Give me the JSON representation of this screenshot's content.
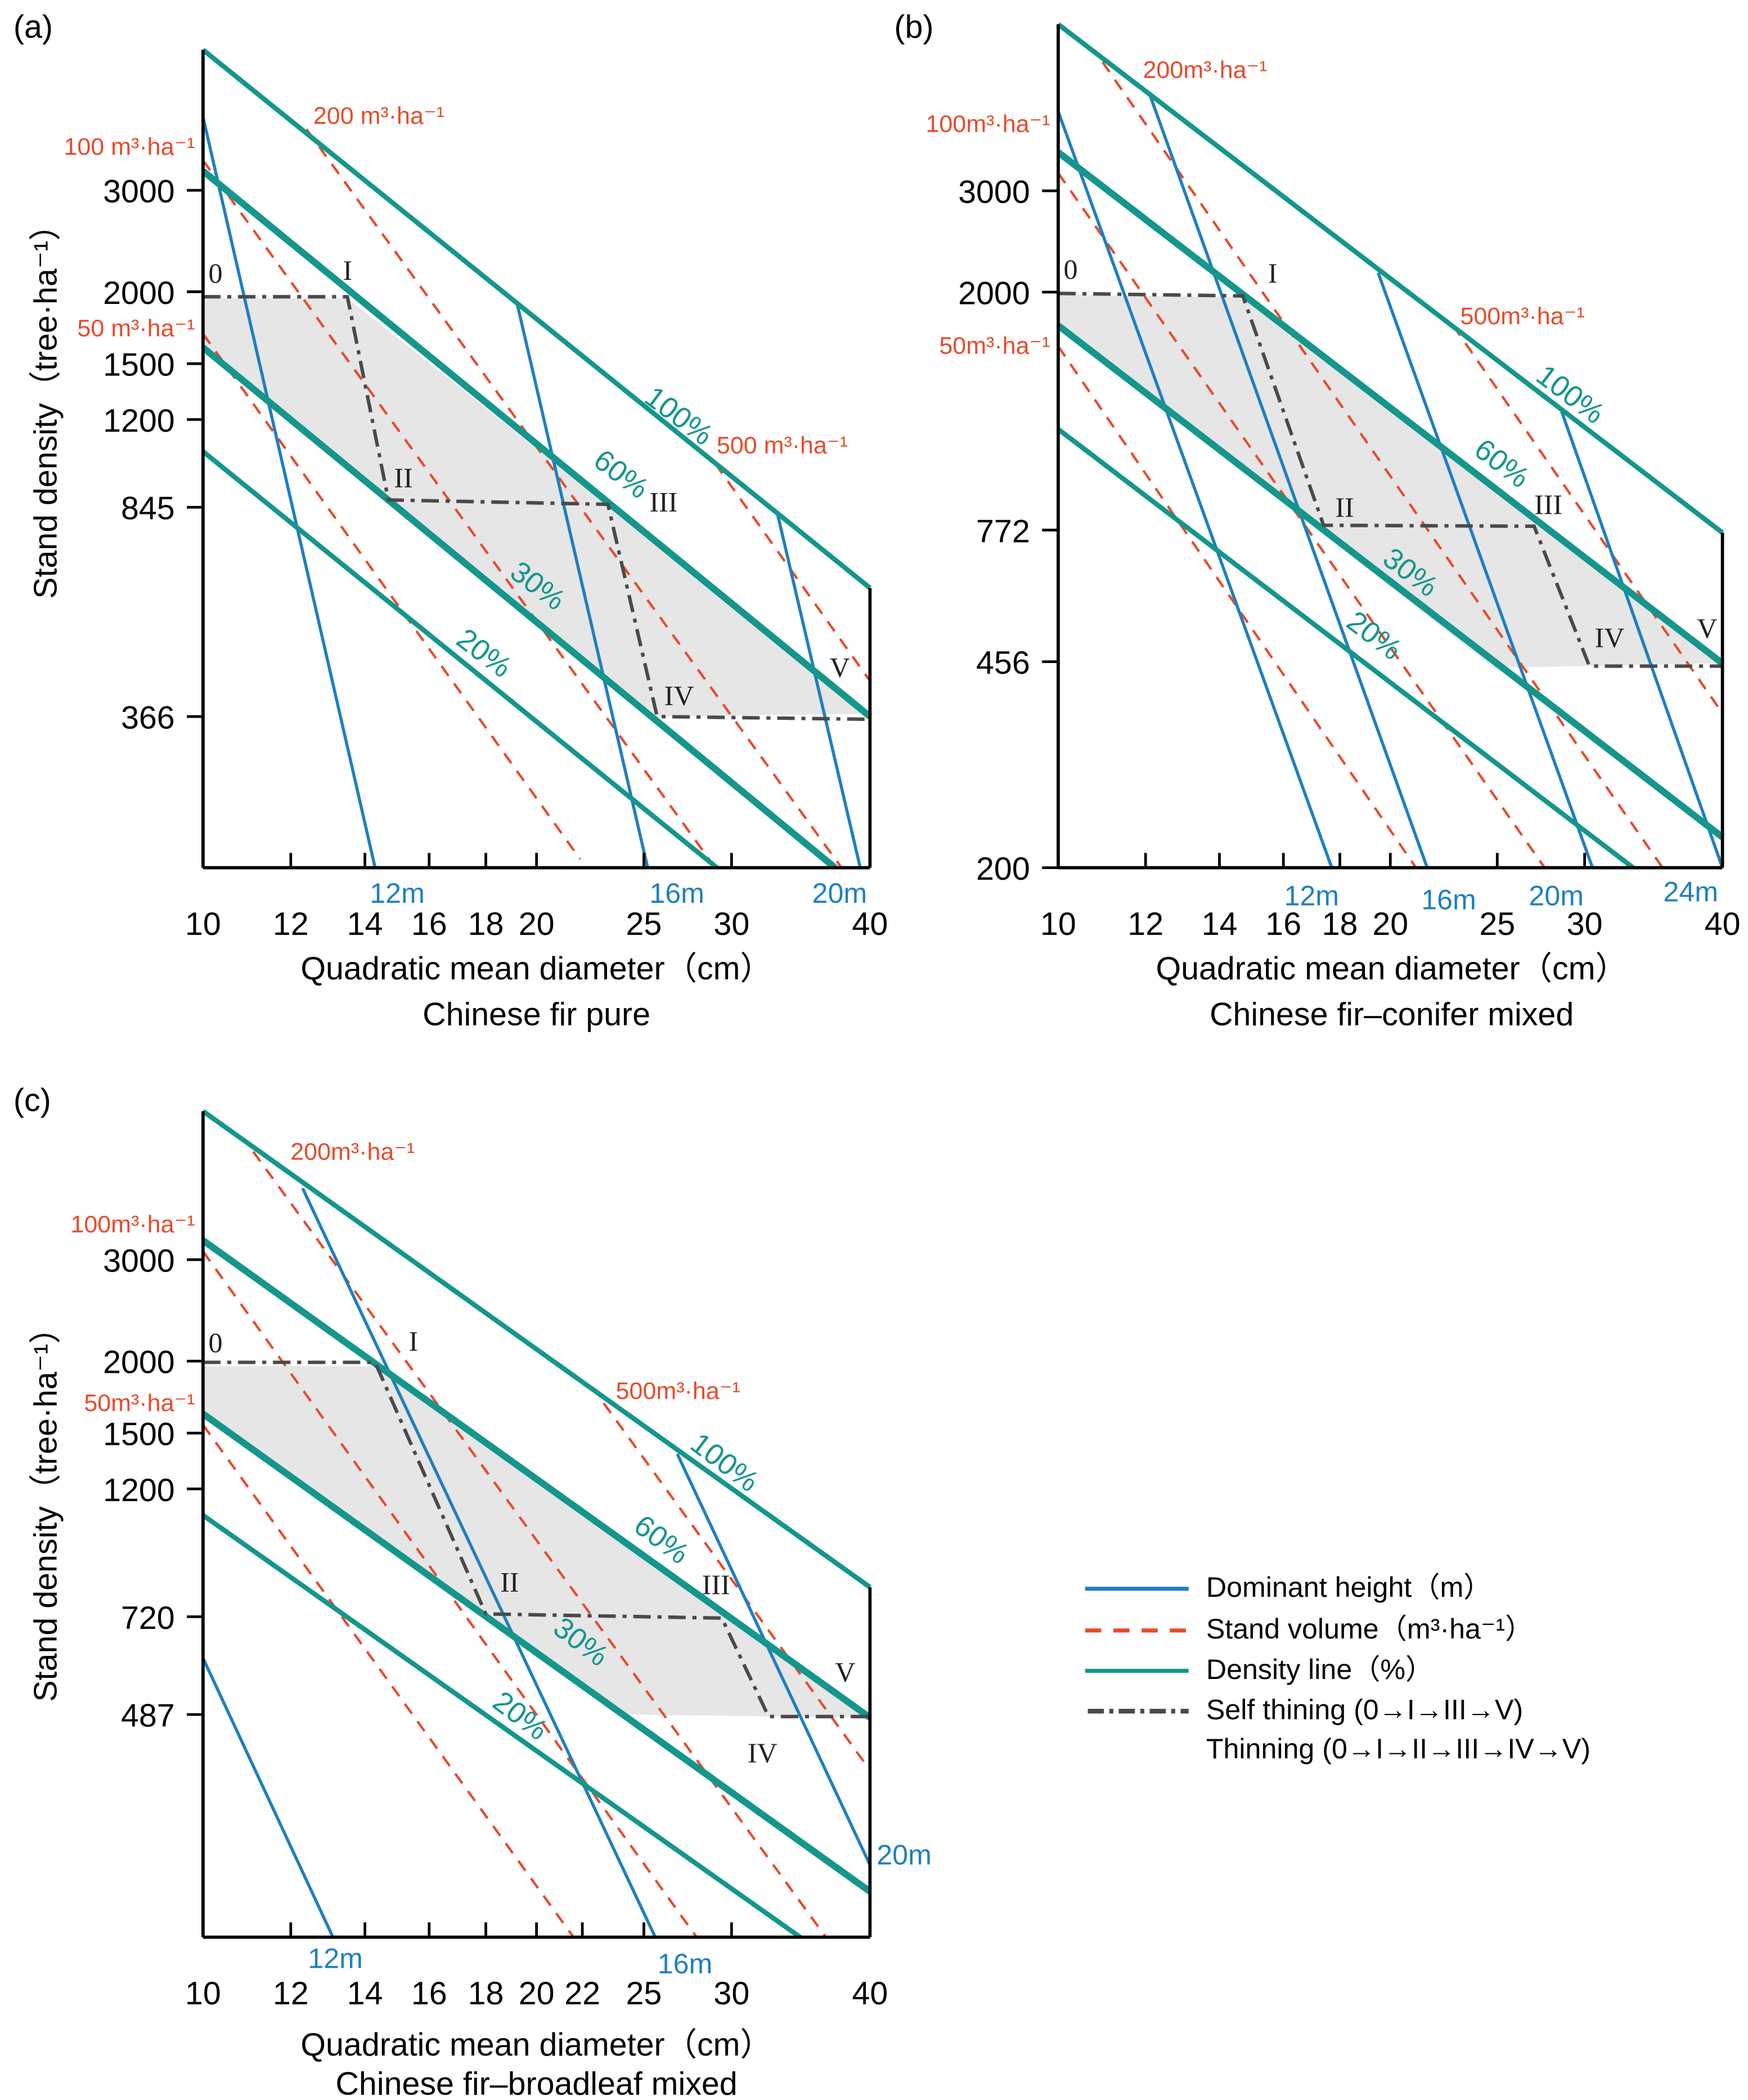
{
  "colors": {
    "height": "#1f7fc0",
    "volume": "#e84a2a",
    "density": "#14968c",
    "path": "#4a4a4a",
    "shade": "#e6e6e6"
  },
  "legend": [
    {
      "label": "Dominant height（m）",
      "style": "height"
    },
    {
      "label": "Stand volume（m³·ha⁻¹）",
      "style": "volume"
    },
    {
      "label": "Density line（%）",
      "style": "density"
    },
    {
      "label": "Self thining (0→I→III→V)",
      "style": "path"
    },
    {
      "label": "Thinning (0→I→II→III→IV→V)",
      "style": "none"
    }
  ],
  "chart_data": [
    {
      "panel": "(a)",
      "type": "line",
      "title": "Chinese fir pure",
      "xlabel": "Quadratic mean diameter（cm）",
      "ylabel": "Stand density（tree·ha⁻¹）",
      "xscale": "log",
      "yscale": "log",
      "xlim": [
        10,
        40
      ],
      "ylim": [
        200,
        5260
      ],
      "xticks": [
        10,
        12,
        14,
        16,
        18,
        20,
        25,
        30,
        40
      ],
      "yticks": [
        3000,
        2000,
        1500,
        1200,
        845,
        366
      ],
      "volume_lines": [
        {
          "label": "50 m³·ha⁻¹",
          "points": [
            [
              10,
              1690
            ],
            [
              21.9,
              207
            ]
          ]
        },
        {
          "label": "100 m³·ha⁻¹",
          "points": [
            [
              10,
              3380
            ],
            [
              29.0,
              200
            ]
          ]
        },
        {
          "label": "200 m³·ha⁻¹",
          "points": [
            [
              12.4,
              3830
            ],
            [
              37.7,
              200
            ]
          ]
        },
        {
          "label": "500 m³·ha⁻¹",
          "points": [
            [
              29.0,
              1006
            ],
            [
              40,
              422
            ]
          ]
        }
      ],
      "density_lines": [
        {
          "label": "100%",
          "points": [
            [
              10,
              5260
            ],
            [
              40,
              612
            ]
          ]
        },
        {
          "label": "60%",
          "points": [
            [
              10,
              3240
            ],
            [
              40,
              366
            ]
          ]
        },
        {
          "label": "30%",
          "points": [
            [
              10,
              1600
            ],
            [
              37.2,
              200
            ]
          ]
        },
        {
          "label": "20%",
          "points": [
            [
              10,
              1056
            ],
            [
              29.1,
              200
            ]
          ]
        }
      ],
      "height_lines": [
        {
          "label": "12m",
          "points": [
            [
              10,
              4020
            ],
            [
              14.3,
              200
            ]
          ]
        },
        {
          "label": "16m",
          "points": [
            [
              19.2,
              1916
            ],
            [
              25.2,
              200
            ]
          ]
        },
        {
          "label": "20m",
          "points": [
            [
              33.0,
              824
            ],
            [
              39.2,
              200
            ]
          ]
        }
      ],
      "path": {
        "labels": [
          "0",
          "I",
          "II",
          "III",
          "IV",
          "V"
        ],
        "points": [
          [
            10,
            1960
          ],
          [
            13.5,
            1960
          ],
          [
            14.7,
            870
          ],
          [
            23.2,
            855
          ],
          [
            25.7,
            366
          ],
          [
            40,
            362
          ]
        ]
      },
      "shaded_region": [
        [
          10,
          1950
        ],
        [
          13.5,
          1950
        ],
        [
          40,
          370
        ],
        [
          25.7,
          366
        ],
        [
          10,
          1600
        ]
      ],
      "right_axis_from": 612
    },
    {
      "panel": "(b)",
      "type": "line",
      "title": "Chinese fir–conifer mixed",
      "xlabel": "Quadratic mean diameter（cm）",
      "ylabel": "",
      "xscale": "log",
      "yscale": "log",
      "xlim": [
        10,
        40
      ],
      "ylim": [
        200,
        5840
      ],
      "xticks": [
        10,
        12,
        14,
        16,
        18,
        20,
        25,
        30,
        40
      ],
      "yticks": [
        3000,
        2000,
        772,
        456,
        200
      ],
      "volume_lines": [
        {
          "label": "50m³·ha⁻¹",
          "points": [
            [
              10,
              1610
            ],
            [
              21.1,
              200
            ]
          ]
        },
        {
          "label": "100m³·ha⁻¹",
          "points": [
            [
              10,
              3220
            ],
            [
              27.6,
              200
            ]
          ]
        },
        {
          "label": "200m³·ha⁻¹",
          "points": [
            [
              10.97,
              5020
            ],
            [
              35.3,
              200
            ]
          ]
        },
        {
          "label": "500m³·ha⁻¹",
          "points": [
            [
              22.8,
              1750
            ],
            [
              40,
              371
            ]
          ]
        }
      ],
      "density_lines": [
        {
          "label": "100%",
          "points": [
            [
              10,
              5840
            ],
            [
              40,
              764
            ]
          ]
        },
        {
          "label": "60%",
          "points": [
            [
              10,
              3500
            ],
            [
              40,
              453
            ]
          ]
        },
        {
          "label": "30%",
          "points": [
            [
              10,
              1750
            ],
            [
              40,
              226
            ]
          ]
        },
        {
          "label": "20%",
          "points": [
            [
              10,
              1156
            ],
            [
              33.2,
              200
            ]
          ]
        }
      ],
      "height_lines": [
        {
          "label": "12m",
          "points": [
            [
              10,
              4120
            ],
            [
              17.7,
              200
            ]
          ]
        },
        {
          "label": "16m",
          "points": [
            [
              12.1,
              4420
            ],
            [
              21.6,
              200
            ]
          ]
        },
        {
          "label": "20m",
          "points": [
            [
              19.5,
              2160
            ],
            [
              30.5,
              200
            ]
          ]
        },
        {
          "label": "24m",
          "points": [
            [
              28.6,
              1240
            ],
            [
              40,
              200
            ]
          ]
        }
      ],
      "path": {
        "labels": [
          "0",
          "I",
          "II",
          "III",
          "IV",
          "V"
        ],
        "points": [
          [
            10,
            1990
          ],
          [
            14.7,
            1970
          ],
          [
            17.4,
            787
          ],
          [
            27.0,
            784
          ],
          [
            30.3,
            448
          ],
          [
            40,
            448
          ]
        ]
      },
      "shaded_region": [
        [
          10,
          1980
        ],
        [
          14.7,
          1960
        ],
        [
          40,
          453
        ],
        [
          24.8,
          445
        ],
        [
          10,
          1750
        ]
      ],
      "right_axis_from": 764
    },
    {
      "panel": "(c)",
      "type": "line",
      "title": "Chinese fir–broadleaf mixed",
      "xlabel": "Quadratic mean diameter（cm）",
      "ylabel": "Stand density（tree·ha⁻¹）",
      "xscale": "log",
      "yscale": "log",
      "xlim": [
        10,
        40
      ],
      "ylim": [
        200,
        5430
      ],
      "xticks": [
        10,
        12,
        14,
        16,
        18,
        20,
        22,
        25,
        30,
        40
      ],
      "yticks": [
        3000,
        2000,
        1500,
        1200,
        720,
        487
      ],
      "volume_lines": [
        {
          "label": "50m³·ha⁻¹",
          "points": [
            [
              10,
              1550
            ],
            [
              21.6,
              200
            ]
          ]
        },
        {
          "label": "100m³·ha⁻¹",
          "points": [
            [
              10,
              3100
            ],
            [
              27.9,
              200
            ]
          ]
        },
        {
          "label": "200m³·ha⁻¹",
          "points": [
            [
              11.1,
              4620
            ],
            [
              36.5,
              200
            ]
          ]
        },
        {
          "label": "500m³·ha⁻¹",
          "points": [
            [
              23.0,
              1690
            ],
            [
              40,
              390
            ]
          ]
        }
      ],
      "density_lines": [
        {
          "label": "100%",
          "points": [
            [
              10,
              5430
            ],
            [
              40,
              810
            ]
          ]
        },
        {
          "label": "60%",
          "points": [
            [
              10,
              3240
            ],
            [
              40,
              481
            ]
          ]
        },
        {
          "label": "30%",
          "points": [
            [
              10,
              1620
            ],
            [
              40,
              240
            ]
          ]
        },
        {
          "label": "20%",
          "points": [
            [
              10,
              1080
            ],
            [
              34.6,
              200
            ]
          ]
        }
      ],
      "height_lines": [
        {
          "label": "12m",
          "points": [
            [
              10,
              610
            ],
            [
              13.1,
              200
            ]
          ]
        },
        {
          "label": "16m",
          "points": [
            [
              12.3,
              3990
            ],
            [
              25.6,
              200
            ]
          ]
        },
        {
          "label": "20m",
          "points": [
            [
              26.8,
              1380
            ],
            [
              40,
              267
            ]
          ]
        }
      ],
      "path": {
        "labels": [
          "0",
          "I",
          "II",
          "III",
          "IV",
          "V"
        ],
        "points": [
          [
            10,
            1990
          ],
          [
            14.3,
            1990
          ],
          [
            18.0,
            728
          ],
          [
            29.4,
            716
          ],
          [
            32.4,
            483
          ],
          [
            40,
            483
          ]
        ]
      },
      "shaded_region": [
        [
          10,
          1960
        ],
        [
          14.3,
          1960
        ],
        [
          40,
          481
        ],
        [
          23.9,
          487
        ],
        [
          10,
          1620
        ]
      ],
      "right_axis_from": 810
    }
  ]
}
